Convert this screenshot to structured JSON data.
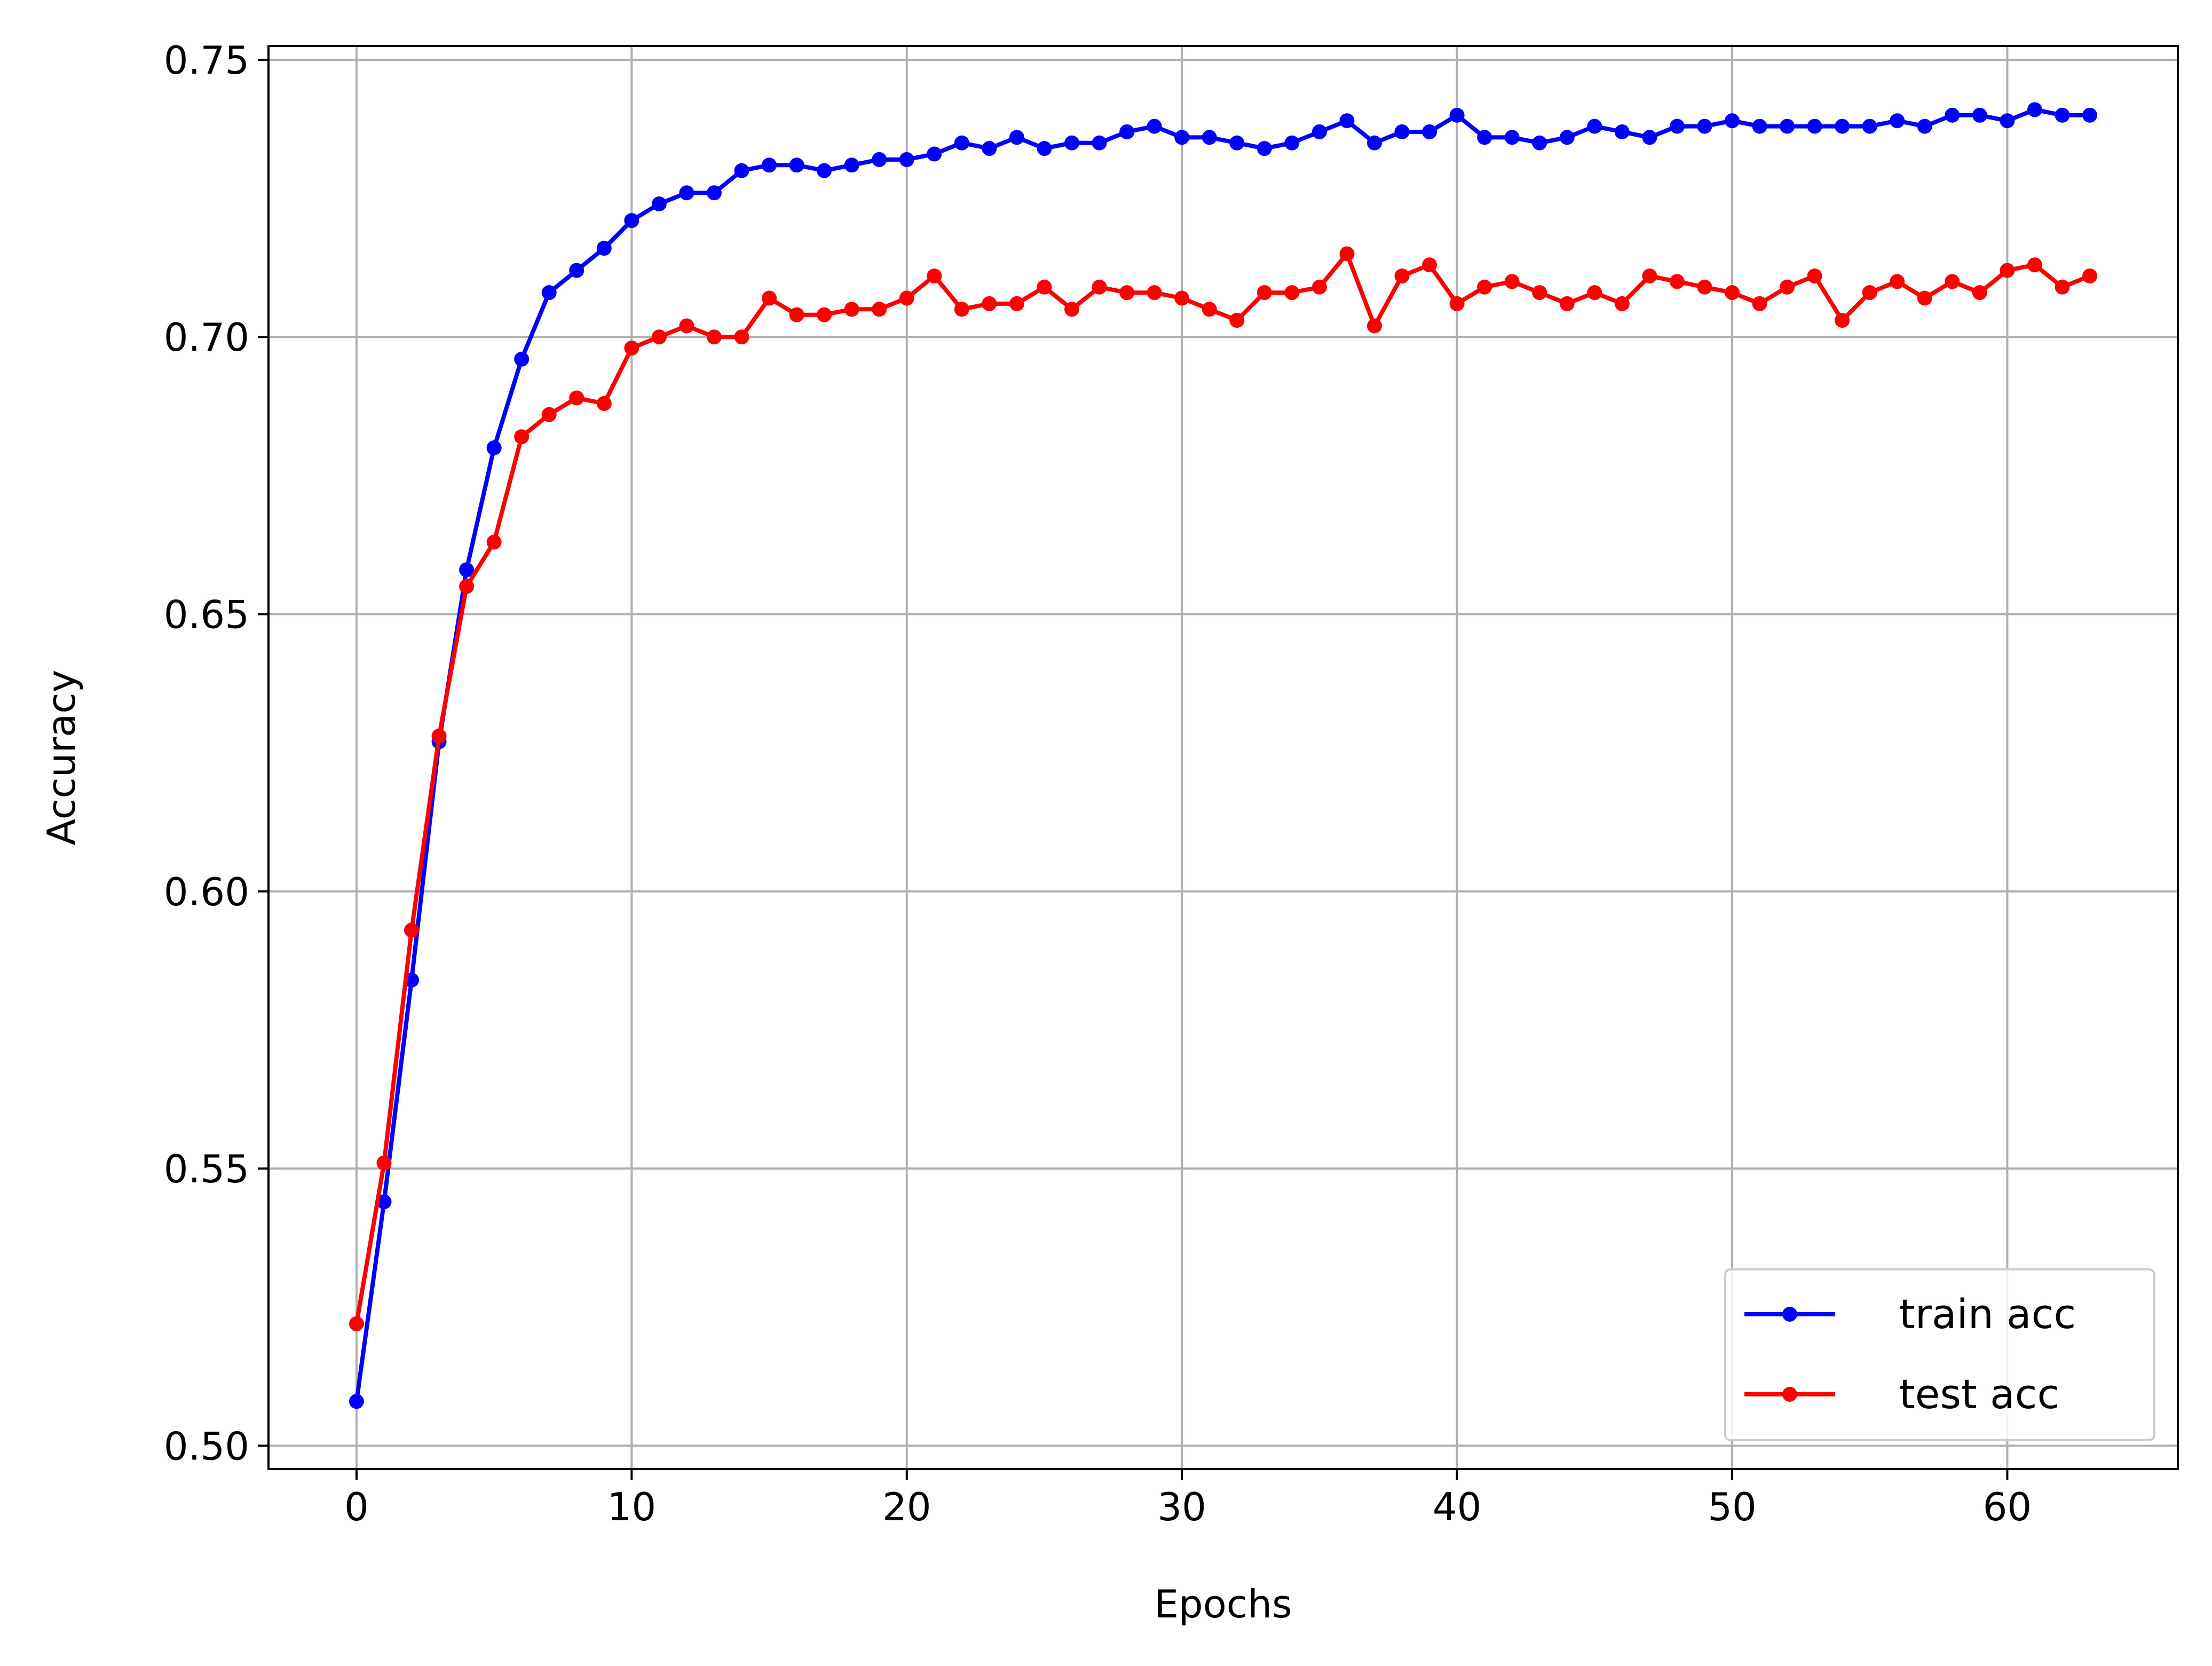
{
  "chart_data": {
    "type": "line",
    "title": "",
    "xlabel": "Epochs",
    "ylabel": "Accuracy",
    "xlim": [
      -3.2,
      66.2
    ],
    "ylim": [
      0.4958,
      0.7525
    ],
    "xticks": [
      0,
      10,
      20,
      30,
      40,
      50,
      60
    ],
    "xtick_labels": [
      "0",
      "10",
      "20",
      "30",
      "40",
      "50",
      "60"
    ],
    "yticks": [
      0.5,
      0.55,
      0.6,
      0.65,
      0.7,
      0.75
    ],
    "ytick_labels": [
      "0.50",
      "0.55",
      "0.60",
      "0.65",
      "0.70",
      "0.75"
    ],
    "grid": true,
    "legend_position": "bottom-right",
    "x": [
      0,
      1,
      2,
      3,
      4,
      5,
      6,
      7,
      8,
      9,
      10,
      11,
      12,
      13,
      14,
      15,
      16,
      17,
      18,
      19,
      20,
      21,
      22,
      23,
      24,
      25,
      26,
      27,
      28,
      29,
      30,
      31,
      32,
      33,
      34,
      35,
      36,
      37,
      38,
      39,
      40,
      41,
      42,
      43,
      44,
      45,
      46,
      47,
      48,
      49,
      50,
      51,
      52,
      53,
      54,
      55,
      56,
      57,
      58,
      59,
      60,
      61,
      62,
      63
    ],
    "series": [
      {
        "name": "train acc",
        "color": "#0000ff",
        "values": [
          0.508,
          0.544,
          0.584,
          0.627,
          0.658,
          0.68,
          0.696,
          0.708,
          0.712,
          0.716,
          0.721,
          0.724,
          0.726,
          0.726,
          0.73,
          0.731,
          0.731,
          0.73,
          0.731,
          0.732,
          0.732,
          0.733,
          0.735,
          0.734,
          0.736,
          0.734,
          0.735,
          0.735,
          0.737,
          0.738,
          0.736,
          0.736,
          0.735,
          0.734,
          0.735,
          0.737,
          0.739,
          0.735,
          0.737,
          0.737,
          0.74,
          0.736,
          0.736,
          0.735,
          0.736,
          0.738,
          0.737,
          0.736,
          0.738,
          0.738,
          0.739,
          0.738,
          0.738,
          0.738,
          0.738,
          0.738,
          0.739,
          0.738,
          0.74,
          0.74,
          0.739,
          0.741,
          0.74,
          0.74
        ]
      },
      {
        "name": "test acc",
        "color": "#ff0000",
        "values": [
          0.522,
          0.551,
          0.593,
          0.628,
          0.655,
          0.663,
          0.682,
          0.686,
          0.689,
          0.688,
          0.698,
          0.7,
          0.702,
          0.7,
          0.7,
          0.707,
          0.704,
          0.704,
          0.705,
          0.705,
          0.707,
          0.711,
          0.705,
          0.706,
          0.706,
          0.709,
          0.705,
          0.709,
          0.708,
          0.708,
          0.707,
          0.705,
          0.703,
          0.708,
          0.708,
          0.709,
          0.715,
          0.702,
          0.711,
          0.713,
          0.706,
          0.709,
          0.71,
          0.708,
          0.706,
          0.708,
          0.706,
          0.711,
          0.71,
          0.709,
          0.708,
          0.706,
          0.709,
          0.711,
          0.703,
          0.708,
          0.71,
          0.707,
          0.71,
          0.708,
          0.712,
          0.713,
          0.709,
          0.711
        ]
      }
    ]
  }
}
